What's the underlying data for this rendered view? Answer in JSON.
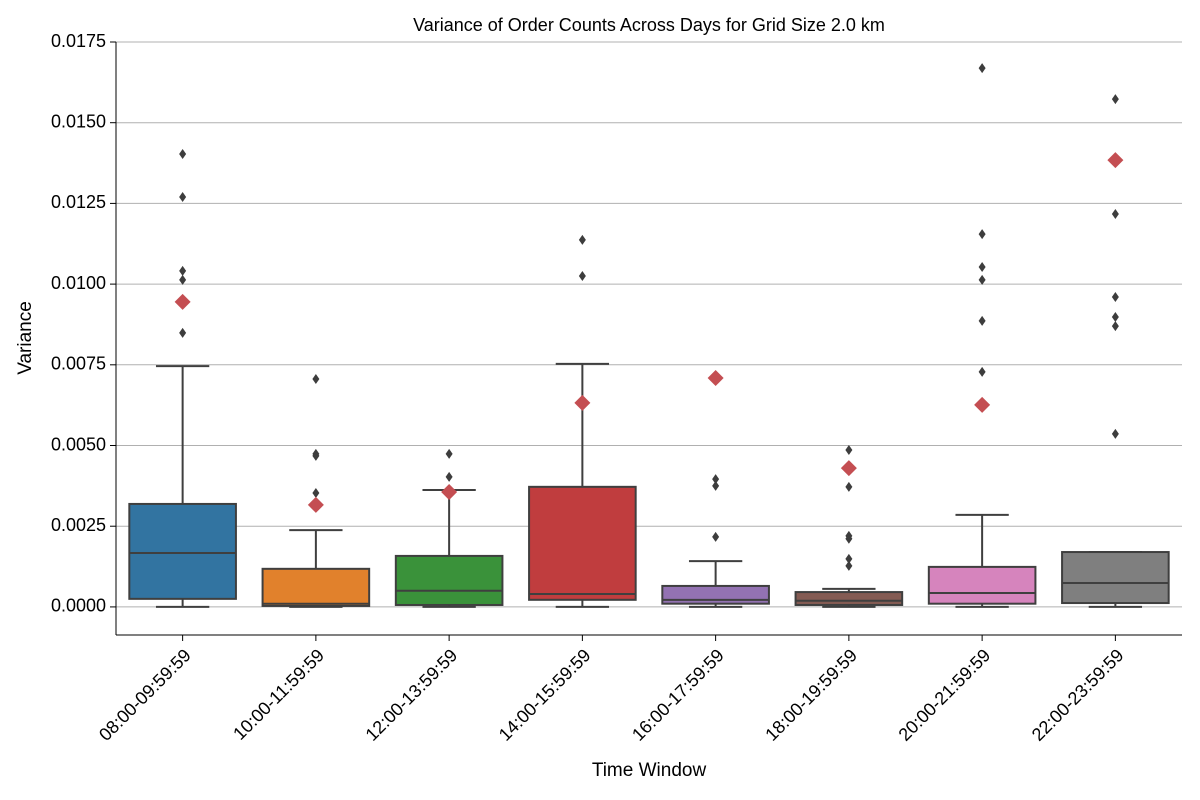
{
  "chart_data": {
    "type": "box",
    "title": "Variance of Order Counts Across Days for Grid Size 2.0 km",
    "x_label": "Time Window",
    "y_label": "Variance",
    "categories": [
      "08:00-09:59:59",
      "10:00-11:59:59",
      "12:00-13:59:59",
      "14:00-15:59:59",
      "16:00-17:59:59",
      "18:00-19:59:59",
      "20:00-21:59:59",
      "22:00-23:59:59"
    ],
    "boxes": [
      {
        "whislo": 0,
        "q1": 0.00025,
        "med": 0.00167,
        "q3": 0.00319,
        "whishi": 0.00746,
        "fliers": [
          0.00849,
          0.01013,
          0.01041,
          0.0127,
          0.01403
        ],
        "mean": 0.00945,
        "color": "#3274a1"
      },
      {
        "whislo": 0,
        "q1": 3e-05,
        "med": 0.0001,
        "q3": 0.00118,
        "whishi": 0.00238,
        "fliers": [
          0.00353,
          0.00468,
          0.00474,
          0.00706
        ],
        "mean": 0.00316,
        "color": "#e1812c"
      },
      {
        "whislo": 0,
        "q1": 6e-05,
        "med": 0.0005,
        "q3": 0.00158,
        "whishi": 0.00362,
        "fliers": [
          0.00403,
          0.00474
        ],
        "mean": 0.00356,
        "color": "#3a923a"
      },
      {
        "whislo": 0,
        "q1": 0.00022,
        "med": 0.0004,
        "q3": 0.00372,
        "whishi": 0.00753,
        "fliers": [
          0.01025,
          0.01137
        ],
        "mean": 0.00632,
        "color": "#c03d3e"
      },
      {
        "whislo": 0,
        "q1": 0.0001,
        "med": 0.00022,
        "q3": 0.00065,
        "whishi": 0.00142,
        "fliers": [
          0.00217,
          0.00375,
          0.00396
        ],
        "mean": 0.00709,
        "color": "#9372b2"
      },
      {
        "whislo": 0,
        "q1": 6e-05,
        "med": 0.00019,
        "q3": 0.00046,
        "whishi": 0.00056,
        "fliers": [
          0.00127,
          0.00149,
          0.00211,
          0.0022,
          0.00372,
          0.00486
        ],
        "mean": 0.0043,
        "color": "#845b53"
      },
      {
        "whislo": 0,
        "q1": 0.0001,
        "med": 0.00043,
        "q3": 0.00124,
        "whishi": 0.00285,
        "fliers": [
          0.00728,
          0.00886,
          0.01013,
          0.01053,
          0.01155,
          0.01669
        ],
        "mean": 0.00626,
        "color": "#d684bd"
      },
      {
        "whislo": 0,
        "q1": 0.00012,
        "med": 0.00074,
        "q3": 0.0017,
        "whishi": 0.0017,
        "fliers": [
          0.00536,
          0.0087,
          0.00898,
          0.0096,
          0.01217,
          0.01573
        ],
        "mean": 0.01384,
        "color": "#7f7f7f"
      }
    ],
    "mean_color": "#c44e52",
    "flier_color": "#3d3d3d",
    "ylim": [
      -0.00087,
      0.0175
    ],
    "yticks": [
      {
        "value": 0,
        "label": "0.0000"
      },
      {
        "value": 0.0025,
        "label": "0.0025"
      },
      {
        "value": 0.005,
        "label": "0.0050"
      },
      {
        "value": 0.0075,
        "label": "0.0075"
      },
      {
        "value": 0.01,
        "label": "0.0100"
      },
      {
        "value": 0.0125,
        "label": "0.0125"
      },
      {
        "value": 0.015,
        "label": "0.0150"
      },
      {
        "value": 0.0175,
        "label": "0.0175"
      }
    ],
    "grid": true
  }
}
